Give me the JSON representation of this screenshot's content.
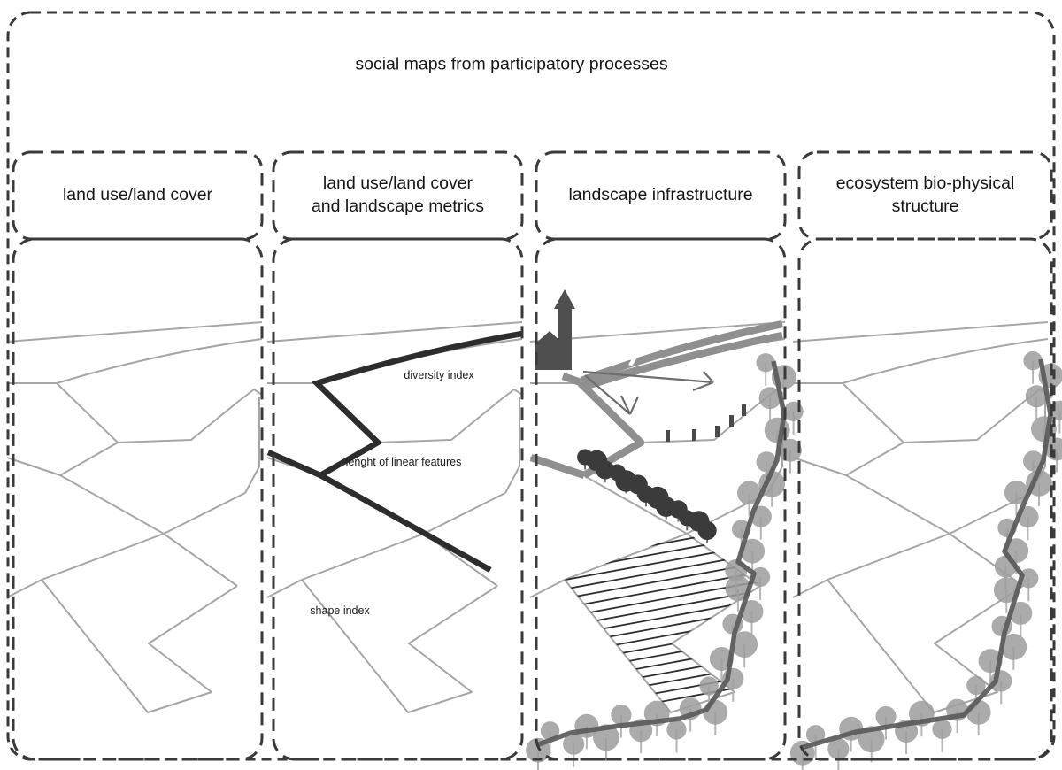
{
  "figure_title": "social maps from participatory processes",
  "panels": [
    {
      "key": "land-use-land-cover",
      "label": "land use/land cover"
    },
    {
      "key": "land-use-land-cover-and-landscape-metrics",
      "label": "land use/land cover\nand landscape metrics",
      "annotations": {
        "diversity": "diversity index",
        "length": "lenght of linear features",
        "shape": "shape index"
      }
    },
    {
      "key": "landscape-infrastructure",
      "label": "landscape infrastructure"
    },
    {
      "key": "ecosystem-bio-physical-structure",
      "label": "ecosystem bio-physical\nstructure"
    }
  ],
  "colors": {
    "dashed_border": "#3a3a3a",
    "base_map_line": "#a6a6a6",
    "highlight_line": "#2d2d2d",
    "road": "#8f8f8f",
    "church": "#4f4f4f",
    "dark_tree": "#3b3b3b",
    "gray_tree": "#9c9c9c",
    "hedge_line": "#5a5a5a",
    "hatch_line": "#2e2e2e"
  }
}
